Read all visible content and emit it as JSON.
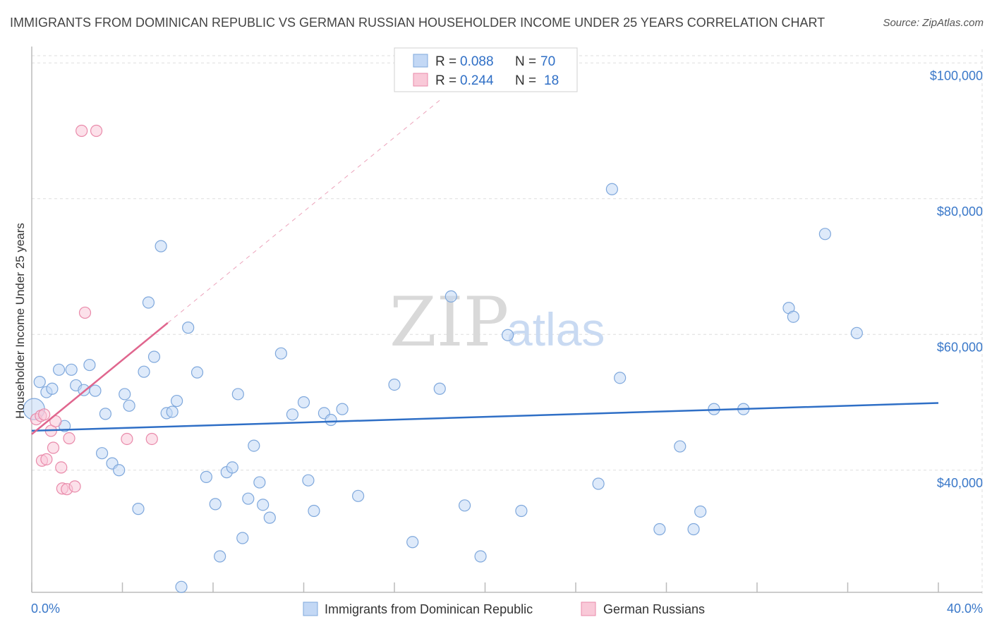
{
  "title": "IMMIGRANTS FROM DOMINICAN REPUBLIC VS GERMAN RUSSIAN HOUSEHOLDER INCOME UNDER 25 YEARS CORRELATION CHART",
  "source": "Source: ZipAtlas.com",
  "watermark": {
    "zip": "ZIP",
    "atlas": "atlas"
  },
  "colors": {
    "blue_fill": "#c3d8f5",
    "blue_stroke": "#7fa8dc",
    "blue_line": "#2f6fc6",
    "pink_fill": "#f9c9d8",
    "pink_stroke": "#e98aaa",
    "pink_line": "#e0668e",
    "tick_text": "#3a78c9",
    "grid": "#dddddd"
  },
  "legend": {
    "rows": [
      {
        "r_label": "R = ",
        "r_value": "0.088",
        "n_label": "N = ",
        "n_value": "70"
      },
      {
        "r_label": "R = ",
        "r_value": "0.244",
        "n_label": "N = ",
        "n_value": "18"
      }
    ]
  },
  "bottom_legend": [
    "Immigrants from Dominican Republic",
    "German Russians"
  ],
  "chart_data": {
    "type": "scatter",
    "title": "IMMIGRANTS FROM DOMINICAN REPUBLIC VS GERMAN RUSSIAN HOUSEHOLDER INCOME UNDER 25 YEARS CORRELATION CHART",
    "xlabel": "",
    "ylabel": "Householder Income Under 25 years",
    "xlim": [
      0,
      40
    ],
    "ylim": [
      22000,
      102000
    ],
    "x_tick_labels": [
      "0.0%",
      "40.0%"
    ],
    "y_ticks": [
      40000,
      60000,
      80000,
      100000
    ],
    "y_tick_labels": [
      "$40,000",
      "$60,000",
      "$80,000",
      "$100,000"
    ],
    "grid": true,
    "series": [
      {
        "name": "Immigrants from Dominican Republic",
        "color": "#7fa8dc",
        "points": [
          [
            0.1,
            49000
          ],
          [
            0.35,
            53000
          ],
          [
            0.65,
            51500
          ],
          [
            0.9,
            52000
          ],
          [
            1.2,
            54800
          ],
          [
            1.45,
            46500
          ],
          [
            1.75,
            54800
          ],
          [
            1.95,
            52500
          ],
          [
            2.3,
            51800
          ],
          [
            2.55,
            55500
          ],
          [
            2.8,
            51700
          ],
          [
            3.1,
            42500
          ],
          [
            3.25,
            48300
          ],
          [
            3.55,
            41000
          ],
          [
            3.85,
            40000
          ],
          [
            4.1,
            51200
          ],
          [
            4.3,
            49500
          ],
          [
            4.7,
            34300
          ],
          [
            4.95,
            54500
          ],
          [
            5.15,
            64700
          ],
          [
            5.4,
            56700
          ],
          [
            5.7,
            73000
          ],
          [
            5.95,
            48400
          ],
          [
            6.2,
            48600
          ],
          [
            6.4,
            50200
          ],
          [
            6.6,
            22800
          ],
          [
            6.9,
            61000
          ],
          [
            7.3,
            54400
          ],
          [
            7.7,
            39000
          ],
          [
            8.1,
            35000
          ],
          [
            8.3,
            27300
          ],
          [
            8.6,
            39700
          ],
          [
            8.85,
            40400
          ],
          [
            9.1,
            51200
          ],
          [
            9.3,
            30000
          ],
          [
            9.55,
            35800
          ],
          [
            9.8,
            43600
          ],
          [
            10.05,
            38200
          ],
          [
            10.2,
            34900
          ],
          [
            10.5,
            33000
          ],
          [
            11.0,
            57200
          ],
          [
            11.5,
            48200
          ],
          [
            12.0,
            50000
          ],
          [
            12.2,
            38500
          ],
          [
            12.45,
            34000
          ],
          [
            12.9,
            48400
          ],
          [
            13.2,
            47400
          ],
          [
            13.7,
            49000
          ],
          [
            14.4,
            36200
          ],
          [
            16.0,
            52600
          ],
          [
            16.8,
            29400
          ],
          [
            18.0,
            52000
          ],
          [
            18.5,
            65600
          ],
          [
            19.1,
            34800
          ],
          [
            19.8,
            27300
          ],
          [
            21.0,
            59900
          ],
          [
            21.6,
            34000
          ],
          [
            25.0,
            38000
          ],
          [
            25.6,
            81400
          ],
          [
            25.95,
            53600
          ],
          [
            27.7,
            31300
          ],
          [
            28.6,
            43500
          ],
          [
            29.2,
            31300
          ],
          [
            29.5,
            33900
          ],
          [
            30.1,
            49000
          ],
          [
            31.4,
            49000
          ],
          [
            33.4,
            63900
          ],
          [
            33.6,
            62600
          ],
          [
            35.0,
            74800
          ],
          [
            36.4,
            60200
          ]
        ]
      },
      {
        "name": "German Russians",
        "color": "#e98aaa",
        "points": [
          [
            0.2,
            47500
          ],
          [
            0.4,
            48000
          ],
          [
            0.45,
            41400
          ],
          [
            0.55,
            48200
          ],
          [
            0.65,
            41600
          ],
          [
            0.85,
            45800
          ],
          [
            0.95,
            43300
          ],
          [
            1.05,
            47200
          ],
          [
            1.3,
            40400
          ],
          [
            1.35,
            37300
          ],
          [
            1.55,
            37200
          ],
          [
            1.65,
            44700
          ],
          [
            1.9,
            37600
          ],
          [
            2.2,
            90000
          ],
          [
            2.35,
            63200
          ],
          [
            2.85,
            90000
          ],
          [
            4.2,
            44600
          ],
          [
            5.3,
            44600
          ]
        ]
      }
    ],
    "trend_lines": [
      {
        "series": "Immigrants from Dominican Republic",
        "from": [
          0,
          45800
        ],
        "to": [
          40,
          49900
        ],
        "style": "solid"
      },
      {
        "series": "German Russians",
        "from": [
          0,
          45300
        ],
        "to": [
          6.0,
          61700
        ],
        "style": "solid"
      },
      {
        "series": "German Russians",
        "from": [
          6.0,
          61700
        ],
        "to": [
          18.0,
          94500
        ],
        "style": "dashed"
      }
    ]
  }
}
